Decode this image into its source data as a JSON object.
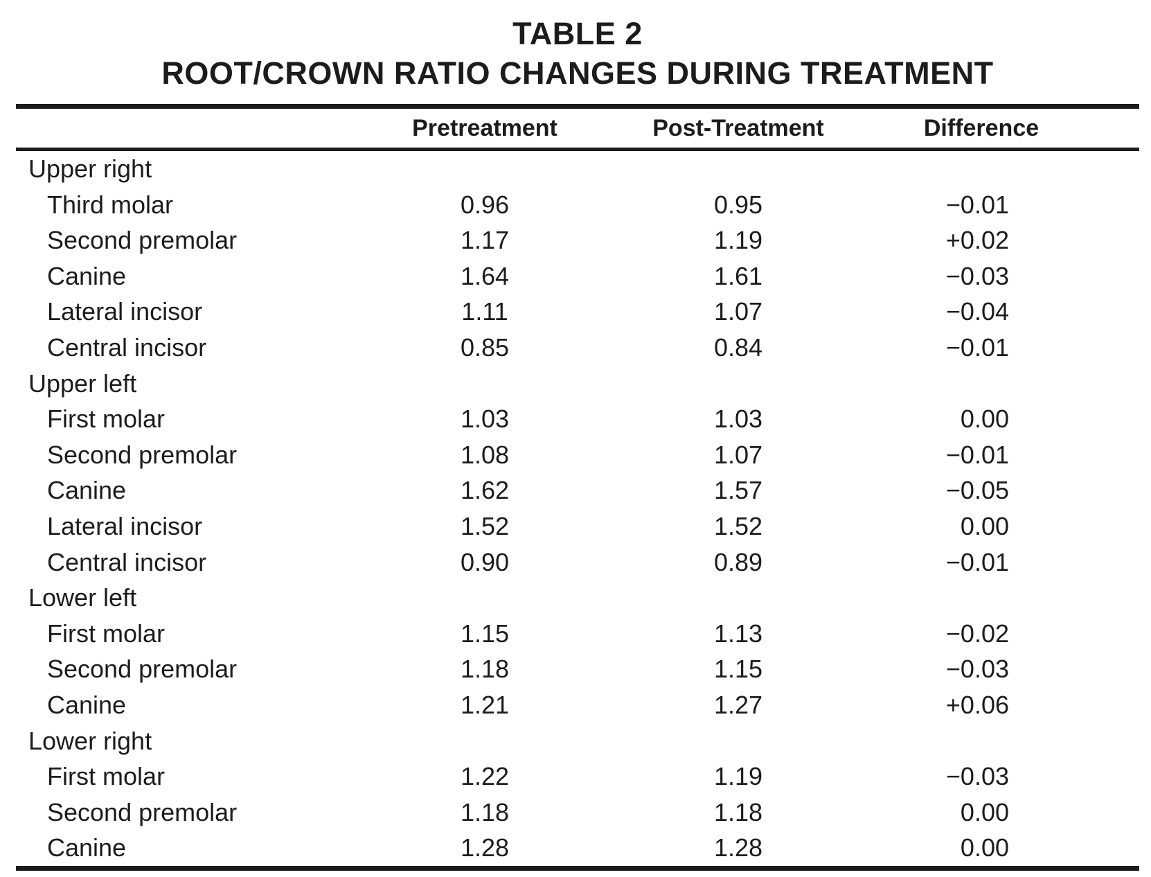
{
  "table": {
    "title_line1": "TABLE 2",
    "title_line2": "ROOT/CROWN RATIO CHANGES DURING TREATMENT",
    "columns": {
      "tooth": "",
      "pre": "Pretreatment",
      "post": "Post-Treatment",
      "diff": "Difference"
    },
    "groups": [
      {
        "label": "Upper right",
        "rows": [
          {
            "tooth": "Third molar",
            "pre": "0.96",
            "post": "0.95",
            "diff": "−0.01"
          },
          {
            "tooth": "Second premolar",
            "pre": "1.17",
            "post": "1.19",
            "diff": "+0.02"
          },
          {
            "tooth": "Canine",
            "pre": "1.64",
            "post": "1.61",
            "diff": "−0.03"
          },
          {
            "tooth": "Lateral incisor",
            "pre": "1.11",
            "post": "1.07",
            "diff": "−0.04"
          },
          {
            "tooth": "Central incisor",
            "pre": "0.85",
            "post": "0.84",
            "diff": "−0.01"
          }
        ]
      },
      {
        "label": "Upper left",
        "rows": [
          {
            "tooth": "First molar",
            "pre": "1.03",
            "post": "1.03",
            "diff": "0.00"
          },
          {
            "tooth": "Second premolar",
            "pre": "1.08",
            "post": "1.07",
            "diff": "−0.01"
          },
          {
            "tooth": "Canine",
            "pre": "1.62",
            "post": "1.57",
            "diff": "−0.05"
          },
          {
            "tooth": "Lateral incisor",
            "pre": "1.52",
            "post": "1.52",
            "diff": "0.00"
          },
          {
            "tooth": "Central incisor",
            "pre": "0.90",
            "post": "0.89",
            "diff": "−0.01"
          }
        ]
      },
      {
        "label": "Lower left",
        "rows": [
          {
            "tooth": "First molar",
            "pre": "1.15",
            "post": "1.13",
            "diff": "−0.02"
          },
          {
            "tooth": "Second premolar",
            "pre": "1.18",
            "post": "1.15",
            "diff": "−0.03"
          },
          {
            "tooth": "Canine",
            "pre": "1.21",
            "post": "1.27",
            "diff": "+0.06"
          }
        ]
      },
      {
        "label": "Lower right",
        "rows": [
          {
            "tooth": "First molar",
            "pre": "1.22",
            "post": "1.19",
            "diff": "−0.03"
          },
          {
            "tooth": "Second premolar",
            "pre": "1.18",
            "post": "1.18",
            "diff": "0.00"
          },
          {
            "tooth": "Canine",
            "pre": "1.28",
            "post": "1.28",
            "diff": "0.00"
          }
        ]
      }
    ],
    "colors": {
      "text": "#1c1c1c",
      "rule": "#1c1c1c",
      "background": "#ffffff"
    }
  }
}
